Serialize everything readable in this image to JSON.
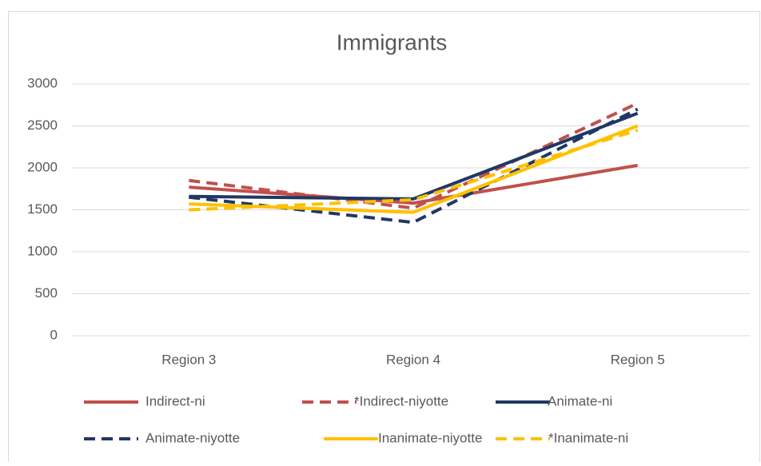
{
  "chart_data": {
    "type": "line",
    "title": "Immigrants",
    "categories": [
      "Region 3",
      "Region 4",
      "Region 5"
    ],
    "series": [
      {
        "name": "Indirect-ni",
        "color": "#c0504d",
        "dashed": false,
        "values": [
          1770,
          1580,
          2030
        ]
      },
      {
        "name": "*Indirect-niyotte",
        "color": "#c0504d",
        "dashed": true,
        "values": [
          1850,
          1520,
          2770
        ]
      },
      {
        "name": "Animate-ni",
        "color": "#203864",
        "dashed": false,
        "values": [
          1660,
          1630,
          2650
        ]
      },
      {
        "name": "Animate-niyotte",
        "color": "#203864",
        "dashed": true,
        "values": [
          1650,
          1350,
          2700
        ]
      },
      {
        "name": "Inanimate-niyotte",
        "color": "#ffc000",
        "dashed": false,
        "values": [
          1570,
          1470,
          2500
        ]
      },
      {
        "name": "*Inanimate-ni",
        "color": "#ffc000",
        "dashed": true,
        "values": [
          1500,
          1620,
          2450
        ]
      }
    ],
    "ylim": [
      0,
      3000
    ],
    "yticks": [
      0,
      500,
      1000,
      1500,
      2000,
      2500,
      3000
    ],
    "grid": true,
    "legend": "bottom"
  }
}
